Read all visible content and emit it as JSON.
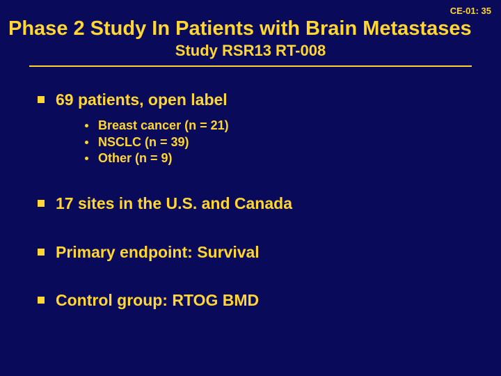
{
  "colors": {
    "background": "#0a0a5a",
    "text": "#ffd633",
    "bullet": "#ffd633",
    "rule": "#ffd633"
  },
  "typography": {
    "fontFamily": "Arial",
    "title_fontsize_pt": 22,
    "subtitle_fontsize_pt": 17,
    "bullet1_fontsize_pt": 17,
    "bullet2_fontsize_pt": 13,
    "fontWeight": "bold"
  },
  "slideNumber": "CE-01: 35",
  "title": "Phase 2 Study In Patients with Brain Metastases",
  "subtitle": "Study RSR13 RT-008",
  "bullets": [
    {
      "text": "69 patients, open label",
      "sub": [
        "Breast cancer (n = 21)",
        "NSCLC (n = 39)",
        "Other (n = 9)"
      ]
    },
    {
      "text": "17 sites in the U.S. and Canada"
    },
    {
      "text": "Primary endpoint: Survival"
    },
    {
      "text": "Control group: RTOG BMD"
    }
  ]
}
